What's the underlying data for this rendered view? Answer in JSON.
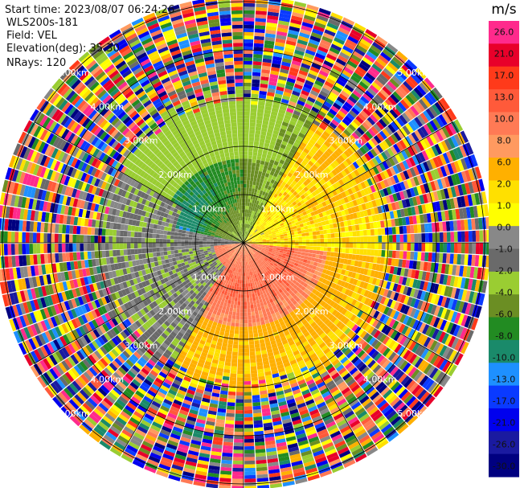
{
  "header": {
    "start_time": "Start time: 2023/08/07 06:24:26",
    "instrument": "WLS200s-181",
    "field": "Field: VEL",
    "elevation": "Elevation(deg): 35.30",
    "nrays": "NRays: 120"
  },
  "colorbar": {
    "unit": "m/s",
    "ticks": [
      "26.0",
      "21.0",
      "17.0",
      "13.0",
      "10.0",
      "8.0",
      "6.0",
      "2.0",
      "1.0",
      "0.0",
      "-1.0",
      "-2.0",
      "-4.0",
      "-6.0",
      "-8.0",
      "-10.0",
      "-13.0",
      "-17.0",
      "-21.0",
      "-26.0",
      "-30.0"
    ],
    "colors": [
      "#ff2a8c",
      "#e8002a",
      "#ff3a1a",
      "#ff5a3a",
      "#ff7a55",
      "#ff9a60",
      "#ffb000",
      "#ffe000",
      "#ffff00",
      "#888888",
      "#6a6a6a",
      "#9acd32",
      "#6b8e23",
      "#228b22",
      "#1a8a6a",
      "#1e90ff",
      "#0a3aff",
      "#0000ee",
      "#1a1aa0",
      "#000080"
    ]
  },
  "chart_data": {
    "type": "ppi",
    "field": "VEL",
    "unit": "m/s",
    "nrays": 120,
    "range_rings_km": [
      1,
      2,
      3,
      4,
      5
    ],
    "ring_labels": [
      "1.00km",
      "2.00km",
      "3.00km",
      "4.00km",
      "5.00km"
    ],
    "vmin": -30,
    "vmax": 26,
    "velocity_regions": [
      {
        "region": "north-west inner",
        "value_ms": -6.0
      },
      {
        "region": "north-west core",
        "value_ms": -10.0
      },
      {
        "region": "east inner",
        "value_ms": 2.0
      },
      {
        "region": "south inner",
        "value_ms": 10.0
      },
      {
        "region": "south-west inner",
        "value_ms": -1.0
      }
    ]
  }
}
